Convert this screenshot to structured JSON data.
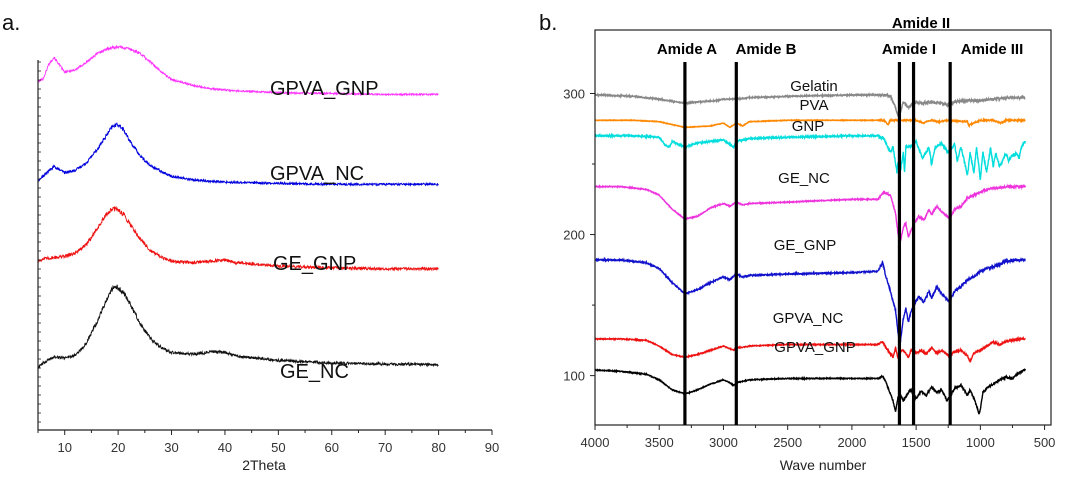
{
  "chart_data": [
    {
      "type": "line",
      "panel_label": "a.",
      "xlabel": "2Theta",
      "ylabel": "",
      "xlim": [
        5,
        90
      ],
      "xticks": [
        "10",
        "20",
        "30",
        "40",
        "50",
        "60",
        "70",
        "80",
        "90"
      ],
      "xticks_values": [
        10,
        20,
        30,
        40,
        50,
        60,
        70,
        80,
        90
      ],
      "y_tick_labels": false,
      "y_axis_units": "arbitrary (stacked, intensity not labelled)",
      "grid": false,
      "series": [
        {
          "name": "GPVA_GNP",
          "color": "#ff33ff",
          "noise": 0.6,
          "x": [
            5,
            6,
            7,
            8,
            10,
            12,
            14,
            16,
            18,
            20,
            22,
            24,
            26,
            28,
            30,
            34,
            38,
            42,
            50,
            60,
            70,
            80
          ],
          "y": [
            0.95,
            0.99,
            1.15,
            1.23,
            1.06,
            1.09,
            1.17,
            1.27,
            1.33,
            1.35,
            1.33,
            1.28,
            1.18,
            1.07,
            0.98,
            0.91,
            0.87,
            0.85,
            0.83,
            0.82,
            0.81,
            0.81
          ]
        },
        {
          "name": "GPVA_NC",
          "color": "#0000dd",
          "noise": 0.8,
          "x": [
            5,
            6,
            7,
            8,
            10,
            12,
            14,
            16,
            18,
            19,
            20,
            21,
            22,
            24,
            26,
            28,
            30,
            34,
            38,
            42,
            50,
            60,
            70,
            80
          ],
          "y": [
            0.83,
            0.88,
            0.94,
            0.99,
            0.92,
            0.95,
            1.03,
            1.18,
            1.36,
            1.45,
            1.47,
            1.41,
            1.3,
            1.12,
            1.0,
            0.94,
            0.88,
            0.84,
            0.82,
            0.81,
            0.8,
            0.79,
            0.79,
            0.79
          ]
        },
        {
          "name": "GE_GNP",
          "color": "#ee1111",
          "noise": 1.0,
          "x": [
            5,
            6,
            8,
            10,
            12,
            14,
            16,
            18,
            19,
            20,
            21,
            22,
            24,
            26,
            28,
            30,
            34,
            38,
            40,
            42,
            50,
            60,
            70,
            80
          ],
          "y": [
            0.92,
            0.94,
            0.96,
            0.97,
            1.01,
            1.1,
            1.28,
            1.46,
            1.51,
            1.5,
            1.45,
            1.36,
            1.18,
            1.04,
            0.96,
            0.92,
            0.9,
            0.92,
            0.93,
            0.9,
            0.86,
            0.84,
            0.83,
            0.83
          ]
        },
        {
          "name": "GE_NC",
          "color": "#111111",
          "noise": 1.0,
          "x": [
            5,
            6,
            8,
            10,
            12,
            14,
            16,
            18,
            19,
            20,
            21,
            22,
            24,
            26,
            28,
            30,
            34,
            38,
            40,
            42,
            50,
            60,
            70,
            80
          ],
          "y": [
            0.71,
            0.76,
            0.83,
            0.82,
            0.85,
            0.98,
            1.22,
            1.5,
            1.61,
            1.62,
            1.56,
            1.46,
            1.22,
            1.04,
            0.94,
            0.88,
            0.86,
            0.89,
            0.88,
            0.84,
            0.79,
            0.76,
            0.75,
            0.74
          ]
        }
      ]
    },
    {
      "type": "line",
      "panel_label": "b.",
      "xlabel": "Wave number",
      "ylabel": "",
      "xlim": [
        4000,
        450
      ],
      "ylim": [
        65,
        345
      ],
      "xticks": [
        "4000",
        "3500",
        "3000",
        "2500",
        "2000",
        "1500",
        "1000",
        "500"
      ],
      "xticks_values": [
        4000,
        3500,
        3000,
        2500,
        2000,
        1500,
        1000,
        500
      ],
      "yticks": [
        "100",
        "200",
        "300"
      ],
      "yticks_values": [
        100,
        200,
        300
      ],
      "grid": false,
      "vertical_lines": [
        {
          "x": 3300,
          "label": "Amide A"
        },
        {
          "x": 2900,
          "label": "Amide B"
        },
        {
          "x": 1630,
          "label": "Amide I"
        },
        {
          "x": 1520,
          "label": "Amide II"
        },
        {
          "x": 1235,
          "label": "Amide III"
        }
      ],
      "series": [
        {
          "name": "Gelatin",
          "color": "#888888",
          "noise": 0.4,
          "x": [
            4000,
            3700,
            3500,
            3300,
            3200,
            3050,
            3000,
            2950,
            2900,
            2800,
            2500,
            2000,
            1750,
            1700,
            1660,
            1640,
            1620,
            1600,
            1560,
            1540,
            1500,
            1450,
            1400,
            1300,
            1240,
            1200,
            1100,
            1000,
            900,
            800,
            700,
            650
          ],
          "y": [
            299,
            298,
            296,
            293,
            294,
            295,
            296,
            296,
            296,
            297,
            298,
            299,
            299,
            298,
            290,
            284,
            288,
            294,
            290,
            292,
            294,
            293,
            294,
            293,
            292,
            294,
            295,
            295,
            296,
            297,
            297,
            297
          ]
        },
        {
          "name": "PVA",
          "color": "#ff8800",
          "noise": 0.2,
          "x": [
            4000,
            3700,
            3500,
            3300,
            3100,
            3000,
            2950,
            2900,
            2850,
            2800,
            2500,
            2000,
            1750,
            1720,
            1700,
            1600,
            1500,
            1440,
            1420,
            1380,
            1330,
            1250,
            1100,
            1090,
            1080,
            1000,
            900,
            840,
            800,
            700,
            650
          ],
          "y": [
            281,
            281,
            280,
            276,
            277,
            279,
            276,
            279,
            277,
            280,
            281,
            281,
            281,
            278,
            281,
            281,
            281,
            279,
            280,
            281,
            280,
            281,
            280,
            277,
            278,
            281,
            281,
            279,
            281,
            281,
            281
          ]
        },
        {
          "name": "GNP",
          "color": "#00dddd",
          "noise": 0.5,
          "x": [
            4000,
            3700,
            3500,
            3450,
            3420,
            3400,
            3350,
            3300,
            3200,
            3000,
            2950,
            2920,
            2900,
            2850,
            2800,
            2500,
            2000,
            1800,
            1750,
            1700,
            1680,
            1650,
            1640,
            1620,
            1600,
            1590,
            1580,
            1560,
            1500,
            1450,
            1400,
            1380,
            1350,
            1300,
            1250,
            1200,
            1180,
            1150,
            1100,
            1080,
            1050,
            1030,
            1000,
            980,
            950,
            920,
            900,
            880,
            850,
            820,
            800,
            780,
            750,
            720,
            700,
            680,
            650
          ],
          "y": [
            270,
            270,
            269,
            263,
            262,
            266,
            264,
            262,
            265,
            267,
            264,
            262,
            266,
            267,
            268,
            269,
            270,
            270,
            268,
            258,
            262,
            244,
            252,
            246,
            258,
            244,
            262,
            262,
            266,
            254,
            262,
            250,
            262,
            264,
            258,
            264,
            252,
            262,
            242,
            258,
            244,
            262,
            239,
            258,
            244,
            262,
            248,
            258,
            248,
            254,
            258,
            252,
            256,
            258,
            254,
            262,
            266
          ]
        },
        {
          "name": "GE_NC",
          "color": "#ee33dd",
          "noise": 0.3,
          "x": [
            4000,
            3800,
            3600,
            3500,
            3400,
            3300,
            3200,
            3100,
            3000,
            2950,
            2900,
            2850,
            2800,
            2500,
            2000,
            1800,
            1750,
            1700,
            1660,
            1640,
            1625,
            1600,
            1580,
            1560,
            1545,
            1520,
            1480,
            1440,
            1400,
            1380,
            1340,
            1300,
            1240,
            1200,
            1150,
            1100,
            1050,
            1000,
            950,
            900,
            850,
            800,
            700,
            650
          ],
          "y": [
            234,
            234,
            232,
            228,
            218,
            211,
            213,
            219,
            222,
            220,
            223,
            221,
            222,
            223,
            225,
            225,
            230,
            228,
            215,
            200,
            194,
            205,
            208,
            198,
            202,
            207,
            213,
            210,
            218,
            214,
            220,
            216,
            211,
            218,
            220,
            226,
            228,
            230,
            232,
            233,
            233,
            234,
            234,
            234
          ]
        },
        {
          "name": "GE_GNP",
          "color": "#1111cc",
          "noise": 0.4,
          "x": [
            4000,
            3800,
            3600,
            3500,
            3400,
            3300,
            3200,
            3100,
            3000,
            2950,
            2900,
            2850,
            2800,
            2500,
            2000,
            1800,
            1760,
            1740,
            1700,
            1660,
            1640,
            1625,
            1600,
            1580,
            1560,
            1545,
            1520,
            1480,
            1440,
            1400,
            1380,
            1340,
            1300,
            1240,
            1200,
            1150,
            1100,
            1050,
            1000,
            950,
            900,
            850,
            800,
            700,
            650
          ],
          "y": [
            182,
            182,
            180,
            176,
            166,
            158,
            161,
            166,
            170,
            168,
            172,
            170,
            171,
            172,
            173,
            174,
            180,
            172,
            160,
            146,
            130,
            122,
            140,
            148,
            138,
            144,
            150,
            156,
            152,
            160,
            155,
            163,
            158,
            152,
            160,
            163,
            168,
            170,
            174,
            176,
            177,
            179,
            181,
            182,
            182
          ]
        },
        {
          "name": "GPVA_NC",
          "color": "#ee1111",
          "noise": 0.3,
          "x": [
            4000,
            3800,
            3600,
            3500,
            3400,
            3300,
            3200,
            3100,
            3000,
            2950,
            2920,
            2900,
            2850,
            2800,
            2500,
            2000,
            1800,
            1760,
            1720,
            1680,
            1660,
            1640,
            1620,
            1600,
            1560,
            1540,
            1500,
            1460,
            1420,
            1380,
            1340,
            1300,
            1260,
            1240,
            1200,
            1150,
            1100,
            1080,
            1050,
            1000,
            950,
            900,
            850,
            800,
            700,
            650
          ],
          "y": [
            126,
            126,
            125,
            121,
            115,
            113,
            115,
            118,
            121,
            119,
            118,
            120,
            120,
            121,
            122,
            122,
            122,
            124,
            118,
            113,
            120,
            112,
            117,
            118,
            113,
            118,
            116,
            118,
            115,
            120,
            116,
            118,
            115,
            114,
            117,
            118,
            114,
            110,
            116,
            118,
            121,
            124,
            122,
            124,
            126,
            126
          ]
        },
        {
          "name": "GPVA_GNP",
          "color": "#000000",
          "noise": 0.3,
          "x": [
            4000,
            3800,
            3600,
            3500,
            3400,
            3300,
            3200,
            3100,
            3000,
            2950,
            2920,
            2900,
            2850,
            2800,
            2500,
            2000,
            1800,
            1760,
            1720,
            1680,
            1660,
            1640,
            1620,
            1600,
            1560,
            1540,
            1500,
            1460,
            1420,
            1380,
            1340,
            1300,
            1260,
            1240,
            1200,
            1150,
            1100,
            1080,
            1050,
            1020,
            1010,
            1000,
            980,
            950,
            900,
            850,
            800,
            750,
            700,
            650
          ],
          "y": [
            104,
            103,
            101,
            97,
            90,
            87,
            90,
            94,
            97,
            95,
            93,
            95,
            96,
            97,
            98,
            98,
            98,
            100,
            92,
            82,
            75,
            85,
            86,
            82,
            88,
            90,
            84,
            89,
            86,
            92,
            88,
            90,
            82,
            85,
            91,
            93,
            86,
            90,
            84,
            76,
            73,
            76,
            88,
            91,
            94,
            97,
            99,
            98,
            102,
            104
          ]
        }
      ]
    }
  ]
}
